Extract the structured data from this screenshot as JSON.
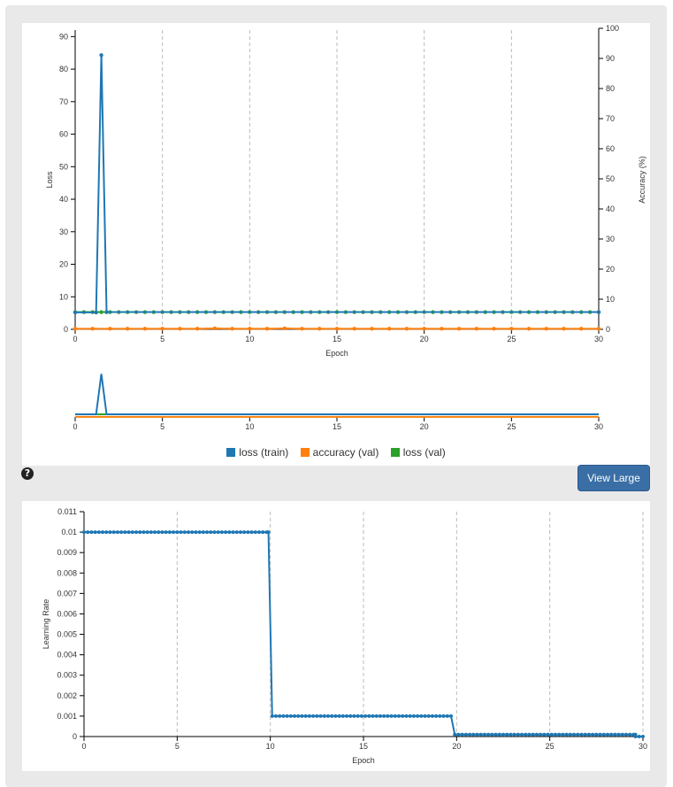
{
  "view_large_label": "View Large",
  "help_icon": "question-circle-icon",
  "help_glyph": "?",
  "colors": {
    "loss_train": "#1f77b4",
    "accuracy_val": "#ff7f0e",
    "loss_val": "#2ca02c"
  },
  "chart_data": [
    {
      "type": "line",
      "xlabel": "Epoch",
      "ylabel": "Loss",
      "ylabel_right": "Accuracy (%)",
      "xlim": [
        0,
        30
      ],
      "ylim": [
        0,
        92
      ],
      "ylim_right": [
        0,
        100
      ],
      "x_ticks": [
        0,
        5,
        10,
        15,
        20,
        25,
        30
      ],
      "y_ticks": [
        0,
        10,
        20,
        30,
        40,
        50,
        60,
        70,
        80,
        90
      ],
      "y_ticks_right": [
        0,
        10,
        20,
        30,
        40,
        50,
        60,
        70,
        80,
        90,
        100
      ],
      "grid": "vertical dashed",
      "legend": "bottom",
      "series": [
        {
          "name": "loss (train)",
          "axis": "left",
          "color": "#1f77b4",
          "points": [
            [
              0,
              5.2
            ],
            [
              1.2,
              5.2
            ],
            [
              1.5,
              84.3
            ],
            [
              1.8,
              5.3
            ],
            [
              30,
              5.3
            ]
          ]
        },
        {
          "name": "accuracy (val)",
          "axis": "right",
          "color": "#ff7f0e",
          "x_start": 0,
          "x_step": 1,
          "values": [
            0.2,
            0.2,
            0.2,
            0.2,
            0.2,
            0.2,
            0.2,
            0.2,
            0.3,
            0.2,
            0.2,
            0.2,
            0.3,
            0.2,
            0.2,
            0.2,
            0.2,
            0.2,
            0.2,
            0.2,
            0.2,
            0.2,
            0.2,
            0.2,
            0.2,
            0.2,
            0.2,
            0.2,
            0.2,
            0.2,
            0.2
          ]
        },
        {
          "name": "loss (val)",
          "axis": "left",
          "color": "#2ca02c",
          "x_start": 0,
          "x_step": 0.5,
          "values": [
            5.3,
            5.3,
            5.3,
            5.3,
            5.3,
            5.3,
            5.3,
            5.3,
            5.3,
            5.3,
            5.3,
            5.3,
            5.3,
            5.3,
            5.3,
            5.3,
            5.3,
            5.3,
            5.3,
            5.3,
            5.3,
            5.3,
            5.3,
            5.3,
            5.3,
            5.3,
            5.3,
            5.3,
            5.3,
            5.3,
            5.3,
            5.3,
            5.3,
            5.3,
            5.3,
            5.3,
            5.3,
            5.3,
            5.3,
            5.3,
            5.3,
            5.3,
            5.3,
            5.3,
            5.3,
            5.3,
            5.3,
            5.3,
            5.3,
            5.3,
            5.3,
            5.3,
            5.3,
            5.3,
            5.3,
            5.3,
            5.3,
            5.3,
            5.3,
            5.3,
            5.3
          ]
        }
      ]
    },
    {
      "type": "line",
      "role": "overview",
      "xlim": [
        0,
        30
      ],
      "x_ticks": [
        0,
        5,
        10,
        15,
        20,
        25,
        30
      ]
    },
    {
      "type": "line",
      "xlabel": "Epoch",
      "ylabel": "Learning Rate",
      "xlim": [
        0,
        30
      ],
      "ylim": [
        0,
        0.011
      ],
      "x_ticks": [
        0,
        5,
        10,
        15,
        20,
        25,
        30
      ],
      "y_ticks": [
        0,
        0.001,
        0.002,
        0.003,
        0.004,
        0.005,
        0.006,
        0.007,
        0.008,
        0.009,
        0.01,
        0.011
      ],
      "grid": "vertical dashed",
      "series": [
        {
          "name": "",
          "color": "#1f77b4",
          "segments": [
            {
              "from": 0,
              "to": 9.9,
              "value": 0.01
            },
            {
              "from": 10.1,
              "to": 19.7,
              "value": 0.001
            },
            {
              "from": 19.9,
              "to": 29.6,
              "value": 0.0001
            },
            {
              "from": 29.6,
              "to": 30,
              "value": 0.0
            }
          ],
          "x_step": 0.2
        }
      ]
    }
  ]
}
